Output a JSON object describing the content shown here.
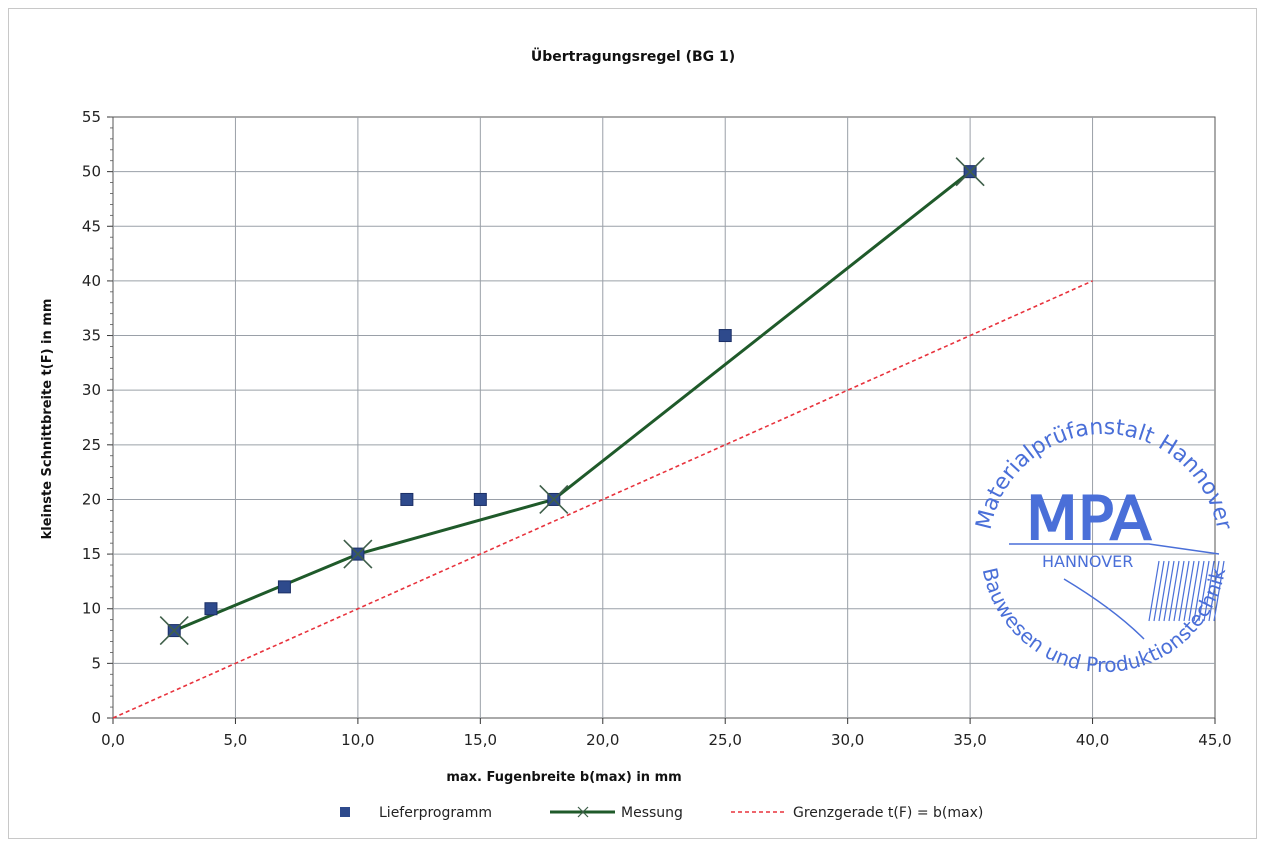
{
  "chart_data": {
    "type": "line",
    "title": "Übertragungsregel (BG 1)",
    "xlabel": "max. Fugenbreite b(max) in mm",
    "ylabel": "kleinste Schnittbreite t(F) in mm",
    "xlim": [
      0,
      45
    ],
    "ylim": [
      0,
      55
    ],
    "x_ticks": [
      "0,0",
      "5,0",
      "10,0",
      "15,0",
      "20,0",
      "25,0",
      "30,0",
      "35,0",
      "40,0",
      "45,0"
    ],
    "y_ticks": [
      "0",
      "5",
      "10",
      "15",
      "20",
      "25",
      "30",
      "35",
      "40",
      "45",
      "50",
      "55"
    ],
    "grid": true,
    "legend_position": "bottom",
    "series": [
      {
        "name": "Lieferprogramm",
        "style": "markers",
        "color": "#2e4a8c",
        "points": [
          [
            2.5,
            8
          ],
          [
            4,
            10
          ],
          [
            7,
            12
          ],
          [
            10,
            15
          ],
          [
            12,
            20
          ],
          [
            15,
            20
          ],
          [
            18,
            20
          ],
          [
            25,
            35
          ],
          [
            35,
            50
          ]
        ]
      },
      {
        "name": "Messung",
        "style": "line",
        "color": "#1f5a2a",
        "points": [
          [
            2.5,
            8
          ],
          [
            10,
            15
          ],
          [
            18,
            20
          ],
          [
            35,
            50
          ]
        ]
      },
      {
        "name": "Grenzgerade t(F) = b(max)",
        "style": "dashed",
        "color": "#e8323c",
        "points": [
          [
            0,
            0
          ],
          [
            40,
            40
          ]
        ]
      }
    ]
  },
  "stamp": {
    "arc_top": "Materialprüfanstalt Hannover",
    "arc_bottom": "Bauwesen und Produktionstechnik",
    "logo": "MPA",
    "city": "HANNOVER",
    "color": "#4a6fd8"
  }
}
